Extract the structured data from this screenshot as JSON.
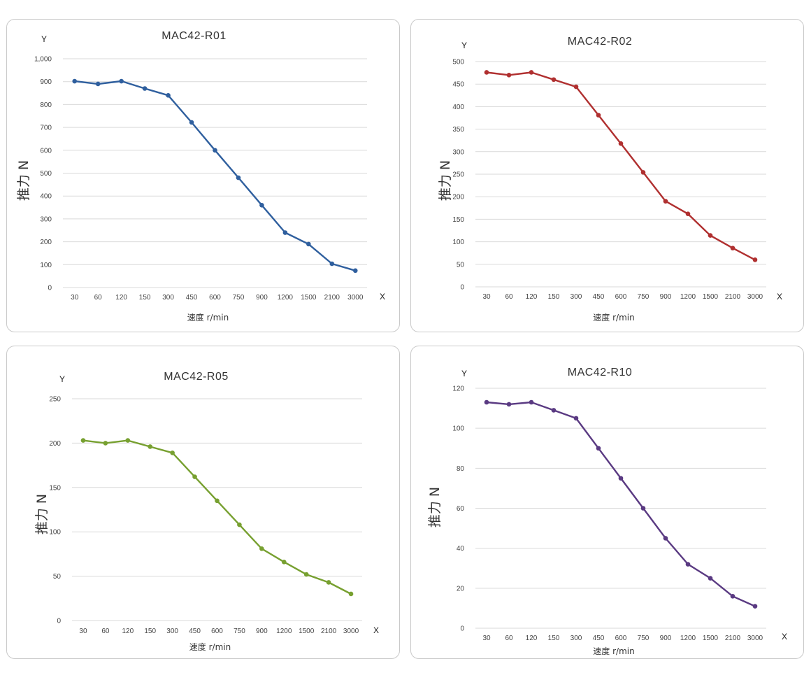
{
  "categories": [
    "30",
    "60",
    "120",
    "150",
    "300",
    "450",
    "600",
    "750",
    "900",
    "1200",
    "1500",
    "2100",
    "3000"
  ],
  "chart_data": [
    {
      "type": "line",
      "title": "MAC42-R01",
      "xlabel": "速度 r/min",
      "ylabel": "推力 N",
      "x_axis_marker": "X",
      "y_axis_marker": "Y",
      "color": "#2f5f9e",
      "ylim": [
        0,
        1000
      ],
      "yticks": [
        0,
        100,
        200,
        300,
        400,
        500,
        600,
        700,
        800,
        900,
        1000
      ],
      "ytick_labels": [
        "0",
        "100",
        "200",
        "300",
        "400",
        "500",
        "600",
        "700",
        "800",
        "900",
        "1,000"
      ],
      "series": [
        {
          "values": [
            902,
            890,
            902,
            870,
            840,
            722,
            600,
            480,
            360,
            240,
            190,
            104,
            74
          ]
        }
      ]
    },
    {
      "type": "line",
      "title": "MAC42-R02",
      "xlabel": "速度 r/min",
      "ylabel": "推力 N",
      "x_axis_marker": "X",
      "y_axis_marker": "Y",
      "color": "#b03030",
      "ylim": [
        0,
        500
      ],
      "yticks": [
        0,
        50,
        100,
        150,
        200,
        250,
        300,
        350,
        400,
        450,
        500
      ],
      "ytick_labels": [
        "0",
        "50",
        "100",
        "150",
        "200",
        "250",
        "300",
        "350",
        "400",
        "450",
        "500"
      ],
      "series": [
        {
          "values": [
            476,
            470,
            476,
            460,
            444,
            381,
            318,
            254,
            190,
            162,
            114,
            86,
            60
          ]
        }
      ]
    },
    {
      "type": "line",
      "title": "MAC42-R05",
      "xlabel": "速度 r/min",
      "ylabel": "推力 N",
      "x_axis_marker": "X",
      "y_axis_marker": "Y",
      "color": "#77a030",
      "ylim": [
        0,
        250
      ],
      "yticks": [
        0,
        50,
        100,
        150,
        200,
        250
      ],
      "ytick_labels": [
        "0",
        "50",
        "100",
        "150",
        "200",
        "250"
      ],
      "series": [
        {
          "values": [
            203,
            200,
            203,
            196,
            189,
            162,
            135,
            108,
            81,
            66,
            52,
            43,
            30
          ]
        }
      ]
    },
    {
      "type": "line",
      "title": "MAC42-R10",
      "xlabel": "速度 r/min",
      "ylabel": "推力 N",
      "x_axis_marker": "X",
      "y_axis_marker": "Y",
      "color": "#5a3a82",
      "ylim": [
        0,
        120
      ],
      "yticks": [
        0,
        20,
        40,
        60,
        80,
        100,
        120
      ],
      "ytick_labels": [
        "0",
        "20",
        "40",
        "60",
        "80",
        "100",
        "120"
      ],
      "series": [
        {
          "values": [
            113,
            112,
            113,
            109,
            105,
            90,
            75,
            60,
            45,
            32,
            25,
            16,
            11
          ]
        }
      ]
    }
  ]
}
